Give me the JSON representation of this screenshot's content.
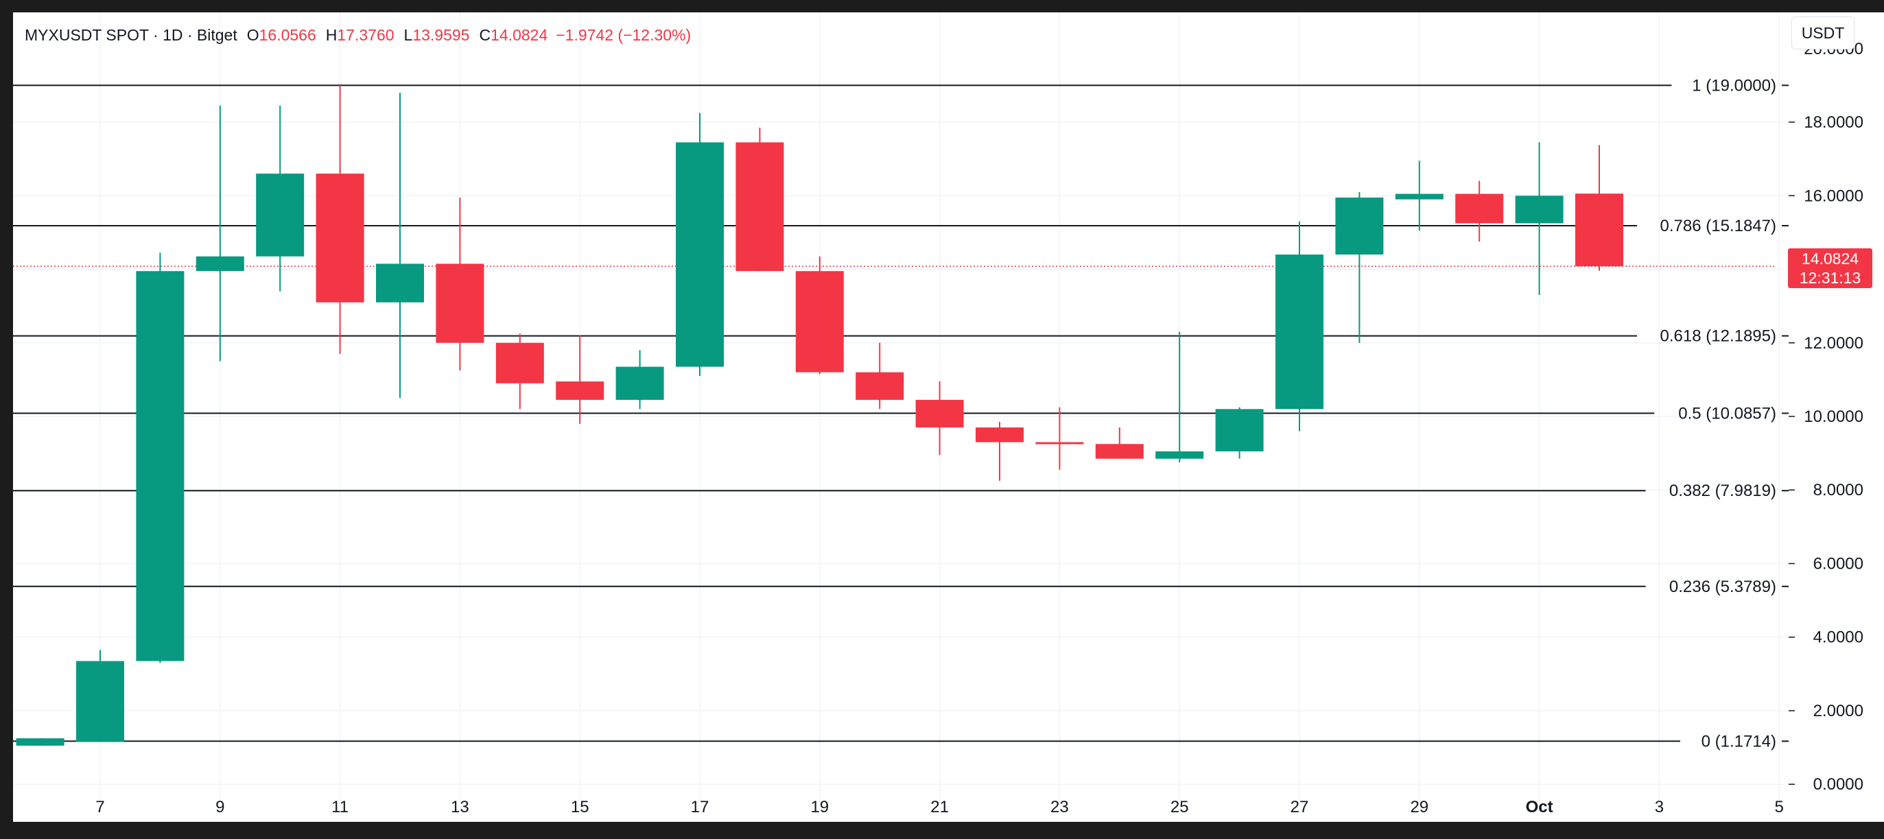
{
  "header": {
    "symbol": "MYXUSDT SPOT · 1D · Bitget",
    "open_label": "O",
    "open_value": "16.0566",
    "high_label": "H",
    "high_value": "17.3760",
    "low_label": "L",
    "low_value": "13.9595",
    "close_label": "C",
    "close_value": "14.0824",
    "change": "−1.9742 (−12.30%)"
  },
  "currency_button": "USDT",
  "price_tag": {
    "price": "14.0824",
    "countdown": "12:31:13"
  },
  "colors": {
    "up": "#089981",
    "down": "#f23645",
    "grid": "#f0f3fa",
    "fib_line": "#131722"
  },
  "chart_data": {
    "type": "candlestick",
    "title": "MYXUSDT SPOT · 1D · Bitget",
    "interval": "1D",
    "ylim": [
      -0.35,
      20.35
    ],
    "y_ticks": [
      "0.0000",
      "2.0000",
      "4.0000",
      "6.0000",
      "8.0000",
      "10.0000",
      "12.0000",
      "14.0000",
      "16.0000",
      "18.0000"
    ],
    "x_ticks": [
      {
        "day": 7,
        "label": "7"
      },
      {
        "day": 9,
        "label": "9"
      },
      {
        "day": 11,
        "label": "11"
      },
      {
        "day": 13,
        "label": "13"
      },
      {
        "day": 15,
        "label": "15"
      },
      {
        "day": 17,
        "label": "17"
      },
      {
        "day": 19,
        "label": "19"
      },
      {
        "day": 21,
        "label": "21"
      },
      {
        "day": 23,
        "label": "23"
      },
      {
        "day": 25,
        "label": "25"
      },
      {
        "day": 27,
        "label": "27"
      },
      {
        "day": 29,
        "label": "29"
      },
      {
        "day": 31,
        "label": "Oct"
      },
      {
        "day": 33,
        "label": "3"
      },
      {
        "day": 35,
        "label": "5"
      }
    ],
    "candles": [
      {
        "day": 6,
        "open": 1.05,
        "high": 1.25,
        "low": 1.05,
        "close": 1.25
      },
      {
        "day": 7,
        "open": 1.15,
        "high": 3.65,
        "low": 1.15,
        "close": 3.35
      },
      {
        "day": 8,
        "open": 3.35,
        "high": 14.45,
        "low": 3.3,
        "close": 13.95
      },
      {
        "day": 9,
        "open": 13.95,
        "high": 18.45,
        "low": 11.5,
        "close": 14.35
      },
      {
        "day": 10,
        "open": 14.35,
        "high": 18.45,
        "low": 13.4,
        "close": 16.6
      },
      {
        "day": 11,
        "open": 16.6,
        "high": 19.0,
        "low": 11.7,
        "close": 13.1
      },
      {
        "day": 12,
        "open": 13.1,
        "high": 18.8,
        "low": 10.5,
        "close": 14.15
      },
      {
        "day": 13,
        "open": 14.15,
        "high": 15.95,
        "low": 11.25,
        "close": 12.0
      },
      {
        "day": 14,
        "open": 12.0,
        "high": 12.25,
        "low": 10.2,
        "close": 10.9
      },
      {
        "day": 15,
        "open": 10.95,
        "high": 12.2,
        "low": 9.8,
        "close": 10.45
      },
      {
        "day": 16,
        "open": 10.45,
        "high": 11.8,
        "low": 10.2,
        "close": 11.35
      },
      {
        "day": 17,
        "open": 11.35,
        "high": 18.25,
        "low": 11.1,
        "close": 17.45
      },
      {
        "day": 18,
        "open": 17.45,
        "high": 17.85,
        "low": 13.95,
        "close": 13.95
      },
      {
        "day": 19,
        "open": 13.95,
        "high": 14.35,
        "low": 11.15,
        "close": 11.2
      },
      {
        "day": 20,
        "open": 11.2,
        "high": 12.0,
        "low": 10.2,
        "close": 10.45
      },
      {
        "day": 21,
        "open": 10.45,
        "high": 10.95,
        "low": 8.95,
        "close": 9.7
      },
      {
        "day": 22,
        "open": 9.7,
        "high": 9.85,
        "low": 8.25,
        "close": 9.3
      },
      {
        "day": 23,
        "open": 9.3,
        "high": 10.25,
        "low": 8.55,
        "close": 9.25
      },
      {
        "day": 24,
        "open": 9.25,
        "high": 9.7,
        "low": 8.85,
        "close": 8.85
      },
      {
        "day": 25,
        "open": 8.85,
        "high": 12.3,
        "low": 8.75,
        "close": 9.05
      },
      {
        "day": 26,
        "open": 9.05,
        "high": 10.25,
        "low": 8.85,
        "close": 10.2
      },
      {
        "day": 27,
        "open": 10.2,
        "high": 15.3,
        "low": 9.6,
        "close": 14.4
      },
      {
        "day": 28,
        "open": 14.4,
        "high": 16.1,
        "low": 12.0,
        "close": 15.95
      },
      {
        "day": 29,
        "open": 15.9,
        "high": 16.95,
        "low": 15.05,
        "close": 16.05
      },
      {
        "day": 30,
        "open": 16.05,
        "high": 16.4,
        "low": 14.75,
        "close": 15.25
      },
      {
        "day": 31,
        "open": 15.25,
        "high": 17.45,
        "low": 13.3,
        "close": 16.0
      },
      {
        "day": 32,
        "open": 16.0566,
        "high": 17.376,
        "low": 13.9595,
        "close": 14.0824
      }
    ],
    "last_price": 14.0824,
    "fib_levels": [
      {
        "ratio": "1",
        "value": 19.0,
        "label": "1 (19.0000)"
      },
      {
        "ratio": "0.786",
        "value": 15.1847,
        "label": "0.786 (15.1847)"
      },
      {
        "ratio": "0.618",
        "value": 12.1895,
        "label": "0.618 (12.1895)"
      },
      {
        "ratio": "0.5",
        "value": 10.0857,
        "label": "0.5 (10.0857)"
      },
      {
        "ratio": "0.382",
        "value": 7.9819,
        "label": "0.382 (7.9819)"
      },
      {
        "ratio": "0.236",
        "value": 5.3789,
        "label": "0.236 (5.3789)"
      },
      {
        "ratio": "0",
        "value": 1.1714,
        "label": "0 (1.1714)"
      }
    ],
    "grid": true
  }
}
